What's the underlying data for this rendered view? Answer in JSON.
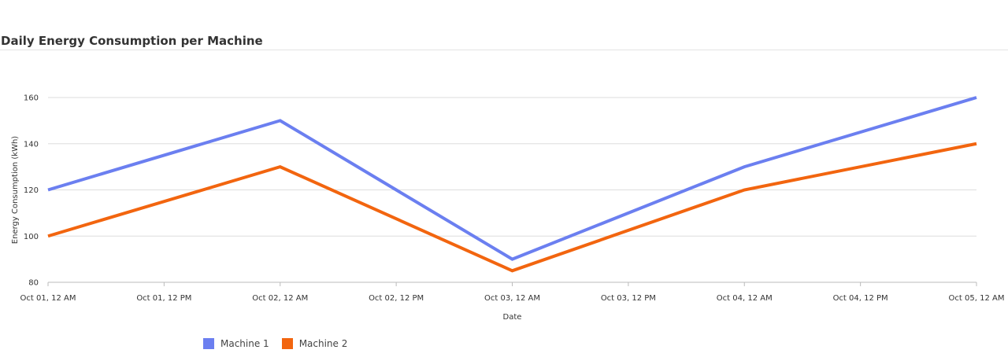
{
  "chart_data": {
    "type": "line",
    "title": "Daily Energy Consumption per Machine",
    "xlabel": "Date",
    "ylabel": "Energy Consumption (kWh)",
    "ylim": [
      80,
      160
    ],
    "yticks": [
      80,
      100,
      120,
      140,
      160
    ],
    "x": [
      "2023-10-01",
      "2023-10-02",
      "2023-10-03",
      "2023-10-04",
      "2023-10-05"
    ],
    "x_tick_labels": [
      "Oct 01, 12 AM",
      "Oct 01, 12 PM",
      "Oct 02, 12 AM",
      "Oct 02, 12 PM",
      "Oct 03, 12 AM",
      "Oct 03, 12 PM",
      "Oct 04, 12 AM",
      "Oct 04, 12 PM",
      "Oct 05, 12 AM"
    ],
    "grid": true,
    "legend_position": "bottom-left",
    "series": [
      {
        "name": "Machine 1",
        "color": "#6b7ff0",
        "values": [
          120,
          150,
          90,
          130,
          160
        ]
      },
      {
        "name": "Machine 2",
        "color": "#f2650f",
        "values": [
          100,
          130,
          85,
          120,
          140
        ]
      }
    ]
  }
}
